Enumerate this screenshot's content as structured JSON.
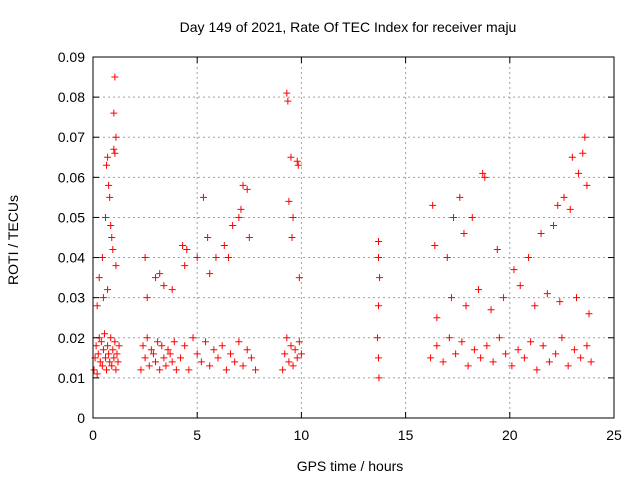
{
  "chart_data": {
    "type": "scatter",
    "title": "Day 149 of 2021, Rate Of TEC Index for receiver maju",
    "xlabel": "GPS time / hours",
    "ylabel": "ROTI / TECUs",
    "xlim": [
      0,
      25
    ],
    "ylim": [
      0,
      0.09
    ],
    "x_ticks": [
      0,
      5,
      10,
      15,
      20,
      25
    ],
    "x_tick_labels": [
      "0",
      "5",
      "10",
      "15",
      "20",
      "25"
    ],
    "y_ticks": [
      0,
      0.01,
      0.02,
      0.03,
      0.04,
      0.05,
      0.06,
      0.07,
      0.08,
      0.09
    ],
    "y_tick_labels": [
      "0",
      "0.01",
      "0.02",
      "0.03",
      "0.04",
      "0.05",
      "0.06",
      "0.07",
      "0.08",
      "0.09"
    ],
    "grid": true,
    "marker": "+",
    "color": "#ff0000",
    "series": [
      {
        "name": "ROTI",
        "x": [
          0.05,
          0.1,
          0.15,
          0.2,
          0.25,
          0.3,
          0.35,
          0.4,
          0.45,
          0.5,
          0.55,
          0.6,
          0.65,
          0.7,
          0.75,
          0.8,
          0.85,
          0.9,
          0.95,
          1.0,
          1.05,
          1.1,
          1.15,
          1.2,
          1.25,
          0.3,
          0.45,
          0.6,
          0.7,
          0.8,
          0.9,
          1.0,
          1.05,
          1.1,
          0.65,
          0.75,
          0.85,
          0.95,
          1.0,
          1.05,
          1.1,
          0.2,
          0.5,
          0.7,
          2.3,
          2.4,
          2.5,
          2.6,
          2.7,
          2.8,
          2.9,
          3.0,
          3.1,
          3.2,
          3.3,
          3.4,
          3.5,
          3.6,
          3.7,
          3.8,
          3.9,
          4.0,
          2.6,
          3.0,
          3.4,
          3.8,
          2.5,
          3.2,
          4.2,
          4.4,
          4.6,
          4.8,
          5.0,
          5.2,
          5.4,
          5.6,
          5.8,
          6.0,
          6.2,
          6.4,
          6.6,
          6.8,
          7.0,
          7.2,
          7.4,
          7.6,
          7.8,
          4.3,
          4.5,
          5.0,
          5.3,
          5.5,
          5.9,
          6.3,
          6.7,
          7.0,
          7.2,
          7.4,
          7.5,
          4.4,
          5.6,
          6.5,
          7.1,
          9.1,
          9.2,
          9.3,
          9.4,
          9.5,
          9.6,
          9.7,
          9.8,
          9.9,
          10.0,
          9.3,
          9.35,
          9.5,
          9.6,
          9.8,
          9.85,
          9.4,
          9.55,
          9.9,
          13.7,
          13.7,
          13.75,
          13.7,
          13.65,
          13.7,
          13.72,
          16.2,
          16.5,
          16.8,
          17.1,
          17.4,
          17.7,
          18.0,
          18.3,
          18.6,
          18.9,
          19.2,
          19.5,
          19.8,
          20.1,
          20.4,
          20.7,
          21.0,
          21.3,
          21.6,
          21.9,
          22.2,
          22.5,
          22.8,
          23.1,
          23.4,
          23.7,
          23.9,
          16.3,
          16.4,
          17.0,
          17.3,
          17.6,
          17.8,
          18.2,
          18.7,
          18.8,
          19.4,
          20.2,
          20.9,
          21.5,
          22.1,
          22.3,
          22.6,
          22.9,
          23.0,
          23.3,
          23.5,
          23.6,
          23.7,
          16.5,
          17.2,
          17.9,
          18.5,
          19.1,
          19.7,
          20.5,
          21.2,
          21.8,
          22.4,
          23.2,
          23.8
        ],
        "y": [
          0.012,
          0.015,
          0.018,
          0.011,
          0.016,
          0.02,
          0.014,
          0.019,
          0.013,
          0.017,
          0.021,
          0.015,
          0.012,
          0.018,
          0.016,
          0.014,
          0.02,
          0.013,
          0.017,
          0.015,
          0.019,
          0.012,
          0.016,
          0.014,
          0.018,
          0.035,
          0.04,
          0.05,
          0.065,
          0.055,
          0.045,
          0.076,
          0.085,
          0.07,
          0.063,
          0.058,
          0.048,
          0.042,
          0.067,
          0.066,
          0.038,
          0.028,
          0.03,
          0.032,
          0.012,
          0.018,
          0.015,
          0.02,
          0.013,
          0.017,
          0.016,
          0.014,
          0.019,
          0.012,
          0.018,
          0.015,
          0.013,
          0.017,
          0.016,
          0.014,
          0.019,
          0.012,
          0.03,
          0.035,
          0.033,
          0.032,
          0.04,
          0.036,
          0.015,
          0.018,
          0.012,
          0.02,
          0.016,
          0.014,
          0.019,
          0.013,
          0.017,
          0.015,
          0.018,
          0.012,
          0.016,
          0.014,
          0.019,
          0.013,
          0.017,
          0.015,
          0.012,
          0.043,
          0.042,
          0.04,
          0.055,
          0.045,
          0.04,
          0.043,
          0.048,
          0.05,
          0.058,
          0.057,
          0.045,
          0.038,
          0.036,
          0.04,
          0.052,
          0.012,
          0.016,
          0.02,
          0.014,
          0.018,
          0.013,
          0.017,
          0.015,
          0.019,
          0.016,
          0.081,
          0.079,
          0.065,
          0.05,
          0.064,
          0.063,
          0.054,
          0.045,
          0.035,
          0.044,
          0.04,
          0.035,
          0.028,
          0.02,
          0.015,
          0.01,
          0.015,
          0.018,
          0.014,
          0.02,
          0.016,
          0.019,
          0.013,
          0.017,
          0.015,
          0.018,
          0.014,
          0.02,
          0.016,
          0.013,
          0.017,
          0.015,
          0.019,
          0.012,
          0.018,
          0.014,
          0.016,
          0.02,
          0.013,
          0.017,
          0.015,
          0.018,
          0.014,
          0.053,
          0.043,
          0.04,
          0.05,
          0.055,
          0.046,
          0.05,
          0.061,
          0.06,
          0.042,
          0.037,
          0.04,
          0.046,
          0.048,
          0.053,
          0.055,
          0.052,
          0.065,
          0.061,
          0.066,
          0.07,
          0.058,
          0.025,
          0.03,
          0.028,
          0.032,
          0.027,
          0.03,
          0.033,
          0.028,
          0.031,
          0.029,
          0.03,
          0.026
        ]
      }
    ]
  }
}
